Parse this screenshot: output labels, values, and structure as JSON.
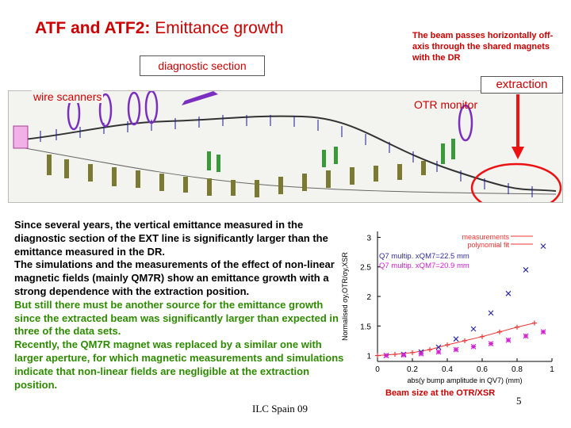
{
  "title": {
    "bold": "ATF and ATF2:",
    "rest": "Emittance growth"
  },
  "top_note": "The beam passes horizontally off-axis through the shared magnets with the DR",
  "labels": {
    "diagnostic": "diagnostic section",
    "wire_scanners": "wire scanners",
    "extraction": "extraction",
    "otr_monitor": "OTR monitor"
  },
  "body": {
    "para1": "Since several years, the vertical emittance measured in the diagnostic section of the EXT line is significantly larger than the emittance measured in the DR.",
    "para2": "The simulations and the measurements of the effect of non-linear magnetic fields (mainly QM7R)  show an emittance growth with a strong dependence with the extraction position.",
    "para3": "But still there must be another source for the emittance growth since the extracted beam was significantly larger than expected in three of the data sets.",
    "para4": "Recently, the QM7R magnet was replaced by a similar one with larger aperture, for which magnetic measurements and simulations indicate that non-linear fields are negligible at the extraction position."
  },
  "caption": "Beam size at the OTR/XSR",
  "footer": "ILC Spain 09",
  "page_number": "5",
  "colors": {
    "accent_red": "#cc0000",
    "green_text": "#2e8b00",
    "ellipse_purple": "#7a2fc0",
    "plot_blue": "#2c2c9c",
    "plot_magenta": "#d020d0",
    "plot_red": "#ee3333"
  },
  "chart_data": {
    "type": "scatter",
    "xlabel": "abs(y bump amplitude in QV7) (mm)",
    "ylabel": "Normalised σy,OTR/σy,XSR",
    "x_ticks": [
      "0",
      "0.2",
      "0.4",
      "0.6",
      "0.8",
      "1"
    ],
    "y_ticks": [
      "1",
      "1.5",
      "2",
      "2.5",
      "3"
    ],
    "xlim": [
      0,
      1
    ],
    "ylim": [
      0.9,
      3.1
    ],
    "legend": [
      "measurements",
      "polynomial fit"
    ],
    "annotations": [
      "Q7 multip. xQM7=22.5 mm",
      "Q7 multip. xQM7=20.9 mm"
    ],
    "series": [
      {
        "name": "measurements",
        "marker": "plus",
        "color": "#ee3333",
        "x": [
          0.0,
          0.1,
          0.2,
          0.3,
          0.4,
          0.5,
          0.6,
          0.7,
          0.8,
          0.9
        ],
        "y": [
          1.0,
          1.02,
          1.05,
          1.1,
          1.18,
          1.25,
          1.32,
          1.4,
          1.48,
          1.55
        ]
      },
      {
        "name": "Q7 multip. xQM7=22.5 mm",
        "marker": "x",
        "color": "#2c2c9c",
        "x": [
          0.05,
          0.15,
          0.25,
          0.35,
          0.45,
          0.55,
          0.65,
          0.75,
          0.85,
          0.95
        ],
        "y": [
          1.0,
          1.02,
          1.06,
          1.14,
          1.28,
          1.45,
          1.72,
          2.05,
          2.45,
          2.85
        ]
      },
      {
        "name": "Q7 multip. xQM7=20.9 mm",
        "marker": "star",
        "color": "#d020d0",
        "x": [
          0.05,
          0.15,
          0.25,
          0.35,
          0.45,
          0.55,
          0.65,
          0.75,
          0.85,
          0.95
        ],
        "y": [
          1.0,
          1.01,
          1.03,
          1.06,
          1.1,
          1.15,
          1.2,
          1.26,
          1.33,
          1.4
        ]
      }
    ]
  }
}
